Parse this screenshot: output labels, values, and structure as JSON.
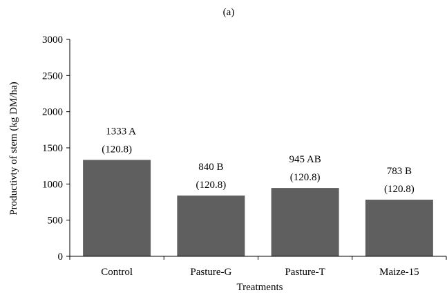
{
  "chart_data": {
    "type": "bar",
    "title": "(a)",
    "xlabel": "Treatments",
    "ylabel": "Productivty of stem (kg DM/ha)",
    "ylim": [
      0,
      3000
    ],
    "yticks": [
      0,
      500,
      1000,
      1500,
      2000,
      2500,
      3000
    ],
    "grid": false,
    "categories": [
      "Control",
      "Pasture-G",
      "Pasture-T",
      "Maize-15"
    ],
    "values": [
      1333,
      840,
      945,
      783
    ],
    "value_labels": [
      "1333 A",
      "840 B",
      "945 AB",
      "783 B"
    ],
    "se_labels": [
      "(120.8)",
      "(120.8)",
      "(120.8)",
      "(120.8)"
    ],
    "colors": {
      "bar": "#5f5f5f",
      "axis": "#000000"
    }
  }
}
